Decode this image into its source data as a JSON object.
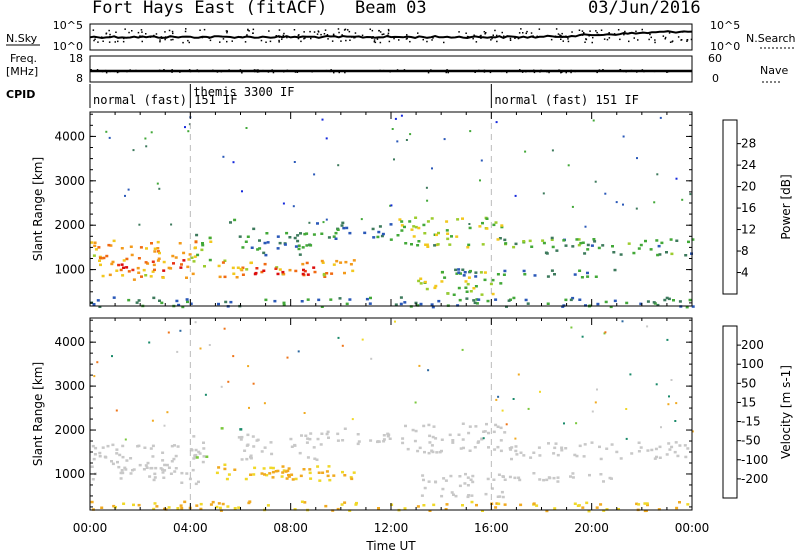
{
  "header": {
    "station": "Fort Hays East (fitACF)",
    "beam": "Beam 03",
    "date": "03/Jun/2016"
  },
  "chart_data": {
    "type": "heatmap",
    "title": "Fort Hays East (fitACF)",
    "xlabel": "Time UT",
    "x_ticks": [
      "00:00",
      "04:00",
      "08:00",
      "12:00",
      "16:00",
      "20:00",
      "00:00"
    ],
    "x_range_hours": [
      0,
      24
    ],
    "dashed_lines_at_hours": [
      4,
      16
    ],
    "top_panels": {
      "sky_left_label": "N.Sky",
      "sky_left_ticks": [
        "10^5",
        "10^0"
      ],
      "sky_right_label": "N.Search",
      "sky_right_ticks": [
        "10^5",
        "10^0"
      ],
      "freq_left_label": "Freq.",
      "freq_left_unit": "[MHz]",
      "freq_left_ticks": [
        "18",
        "8"
      ],
      "freq_right_label": "Nave",
      "freq_right_ticks": [
        "60",
        "0"
      ],
      "cpid_label": "CPID",
      "cpid_segments": [
        {
          "text": "normal (fast) 151 IF",
          "start_hour": 0
        },
        {
          "text": "themis 3300 IF",
          "start_hour": 4
        },
        {
          "text": "normal (fast) 151 IF",
          "start_hour": 16
        }
      ]
    },
    "panels": [
      {
        "name": "Power",
        "ylabel": "Slant Range [km]",
        "yticks": [
          "1000",
          "2000",
          "3000",
          "4000"
        ],
        "ylim": [
          180,
          4550
        ],
        "cbar_label": "Power [dB]",
        "cbar_ticks": [
          "4",
          "8",
          "12",
          "16",
          "20",
          "24",
          "28"
        ],
        "cbar_colors": [
          "#1428dc",
          "#2a58b8",
          "#3d7a5c",
          "#42a838",
          "#9ccc2e",
          "#f2c81e",
          "#f39a1a",
          "#f06a12",
          "#e83214",
          "#dc0c0c"
        ]
      },
      {
        "name": "Velocity",
        "ylabel": "Slant Range [km]",
        "yticks": [
          "1000",
          "2000",
          "3000",
          "4000"
        ],
        "ylim": [
          180,
          4550
        ],
        "cbar_label": "Velocity [m s-1]",
        "cbar_ticks": [
          "200",
          "100",
          "50",
          "15",
          "-15",
          "-50",
          "-100",
          "-200"
        ],
        "cbar_colors": [
          "#1a34c8",
          "#2c68a0",
          "#1a8a6a",
          "#7ac83c",
          "#c8c8c8",
          "#f0d828",
          "#f0aa20",
          "#ee7418",
          "#e63c12",
          "#d20a0a"
        ]
      }
    ],
    "echo_regions": [
      {
        "t0": 0.0,
        "t1": 4.3,
        "r0": 800,
        "r1": 1700,
        "power_db": 20,
        "velocity_ms": 0
      },
      {
        "t0": 1.0,
        "t1": 3.8,
        "r0": 1000,
        "r1": 1250,
        "power_db": 28,
        "velocity_ms": 0
      },
      {
        "t0": 4.0,
        "t1": 4.8,
        "r0": 1100,
        "r1": 1900,
        "power_db": 14,
        "velocity_ms": 5
      },
      {
        "t0": 5.2,
        "t1": 6.0,
        "r0": 2000,
        "r1": 2150,
        "power_db": 12,
        "velocity_ms": 25
      },
      {
        "t0": 5.0,
        "t1": 10.5,
        "r0": 850,
        "r1": 1250,
        "power_db": 20,
        "velocity_ms": -30
      },
      {
        "t0": 6.3,
        "t1": 9.5,
        "r0": 900,
        "r1": 1150,
        "power_db": 28,
        "velocity_ms": -50
      },
      {
        "t0": 5.8,
        "t1": 9.2,
        "r0": 1350,
        "r1": 1950,
        "power_db": 8,
        "velocity_ms": 0
      },
      {
        "t0": 9.0,
        "t1": 12.0,
        "r0": 1700,
        "r1": 2100,
        "power_db": 8,
        "velocity_ms": 0
      },
      {
        "t0": 12.2,
        "t1": 16.5,
        "r0": 1500,
        "r1": 2200,
        "power_db": 14,
        "velocity_ms": 0
      },
      {
        "t0": 13.0,
        "t1": 16.5,
        "r0": 450,
        "r1": 1000,
        "power_db": 14,
        "velocity_ms": 0
      },
      {
        "t0": 16.3,
        "t1": 24.0,
        "r0": 1350,
        "r1": 1750,
        "power_db": 10,
        "velocity_ms": 0
      },
      {
        "t0": 14.0,
        "t1": 21.0,
        "r0": 850,
        "r1": 1050,
        "power_db": 8,
        "velocity_ms": 0
      },
      {
        "t0": 0.0,
        "t1": 24.0,
        "r0": 180,
        "r1": 400,
        "power_db": 8,
        "velocity_ms": -30
      }
    ]
  }
}
